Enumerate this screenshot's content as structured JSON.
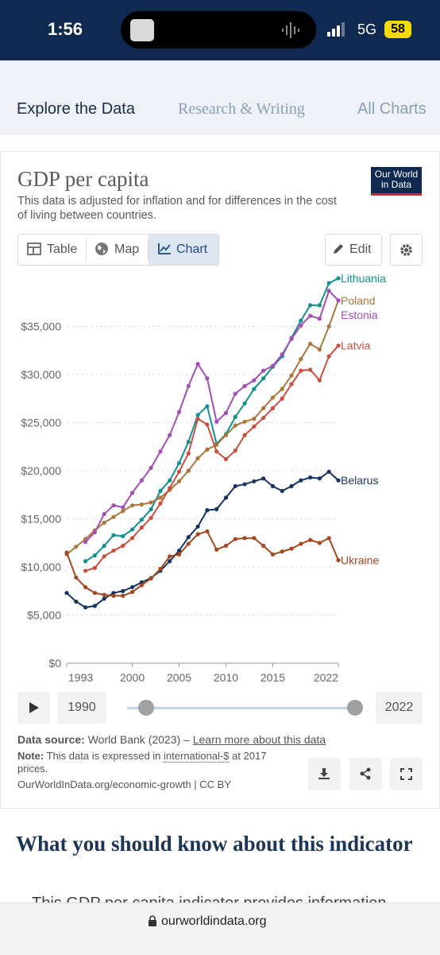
{
  "status_bar": {
    "time": "1:56",
    "network": "5G",
    "battery": "58"
  },
  "tabs": [
    "Explore the Data",
    "Research & Writing",
    "All Charts"
  ],
  "logo": [
    "Our World",
    "in Data"
  ],
  "chart_controls": {
    "views": [
      "Table",
      "Map",
      "Chart"
    ],
    "edit": "Edit"
  },
  "chart_data": {
    "type": "line",
    "title": "GDP per capita",
    "subtitle": "This data is adjusted for inflation and for differences in the cost of living between countries.",
    "x": [
      1993,
      1994,
      1995,
      1996,
      1997,
      1998,
      1999,
      2000,
      2001,
      2002,
      2003,
      2004,
      2005,
      2006,
      2007,
      2008,
      2009,
      2010,
      2011,
      2012,
      2013,
      2014,
      2015,
      2016,
      2017,
      2018,
      2019,
      2020,
      2021,
      2022
    ],
    "series": [
      {
        "name": "Lithuania",
        "color": "#13908f",
        "values": [
          null,
          null,
          10600,
          11200,
          12200,
          13300,
          13200,
          13900,
          14900,
          16000,
          17900,
          19000,
          20800,
          23000,
          25800,
          26700,
          22800,
          23800,
          25600,
          27000,
          28500,
          29600,
          30800,
          31900,
          33800,
          35600,
          37200,
          37200,
          39500,
          40000
        ]
      },
      {
        "name": "Poland",
        "color": "#a8773c",
        "values": [
          11300,
          12100,
          12900,
          13800,
          14600,
          15200,
          15800,
          16400,
          16500,
          16700,
          17200,
          18000,
          18900,
          20000,
          21300,
          22200,
          22700,
          23700,
          24700,
          25100,
          25400,
          26500,
          27600,
          28500,
          29900,
          31600,
          33200,
          32600,
          35000,
          37700
        ]
      },
      {
        "name": "Estonia",
        "color": "#a34db5",
        "values": [
          null,
          null,
          12600,
          13600,
          15500,
          16400,
          16200,
          17700,
          19000,
          20300,
          22000,
          23700,
          26100,
          28800,
          31100,
          29600,
          25100,
          26000,
          28000,
          28800,
          29400,
          30400,
          30900,
          32100,
          33700,
          35100,
          36100,
          35800,
          38700,
          37700
        ]
      },
      {
        "name": "Latvia",
        "color": "#c9503f",
        "values": [
          null,
          null,
          9600,
          9900,
          11100,
          11700,
          12200,
          13000,
          14100,
          15100,
          16600,
          18200,
          19900,
          21800,
          25400,
          24800,
          22000,
          21200,
          22100,
          23700,
          24600,
          25500,
          26500,
          27500,
          29000,
          30400,
          30500,
          29400,
          31900,
          33000
        ]
      },
      {
        "name": "Belarus",
        "color": "#17335f",
        "values": [
          7300,
          6400,
          5800,
          5950,
          6700,
          7300,
          7500,
          7900,
          8400,
          8850,
          9600,
          10600,
          11700,
          13100,
          14200,
          15900,
          16000,
          17200,
          18400,
          18600,
          18900,
          19200,
          18400,
          17900,
          18400,
          19000,
          19300,
          19200,
          19900,
          19000
        ]
      },
      {
        "name": "Ukraine",
        "color": "#a5481f",
        "values": [
          11500,
          8900,
          7900,
          7300,
          7100,
          7000,
          7000,
          7400,
          8100,
          8800,
          9800,
          11100,
          11300,
          12400,
          13400,
          13700,
          11800,
          12200,
          12900,
          13000,
          13000,
          12200,
          11300,
          11600,
          11900,
          12400,
          12800,
          12500,
          13000,
          10700
        ]
      }
    ],
    "xlim": [
      1993,
      2022
    ],
    "xticks": [
      1993,
      2000,
      2005,
      2010,
      2015,
      2022
    ],
    "ylim": [
      0,
      40000
    ],
    "yticks": [
      {
        "value": 0,
        "label": "$0"
      },
      {
        "value": 5000,
        "label": "$5,000"
      },
      {
        "value": 10000,
        "label": "$10,000"
      },
      {
        "value": 15000,
        "label": "$15,000"
      },
      {
        "value": 20000,
        "label": "$20,000"
      },
      {
        "value": 25000,
        "label": "$25,000"
      },
      {
        "value": 30000,
        "label": "$30,000"
      },
      {
        "value": 35000,
        "label": "$35,000"
      }
    ],
    "grid": true
  },
  "timeline": {
    "start": "1990",
    "end": "2022"
  },
  "sources": {
    "data_source_label": "Data source:",
    "data_source": "World Bank (2023) –",
    "learn_more": "Learn more about this data",
    "note_label": "Note:",
    "note_before": "This data is expressed in",
    "note_link": "international-$",
    "note_after": "at 2017 prices.",
    "footer": "OurWorldInData.org/economic-growth | CC BY"
  },
  "section_heading": "What you should know about this indicator",
  "section_text": "This GDP per capita indicator provides information",
  "url": "ourworldindata.org"
}
